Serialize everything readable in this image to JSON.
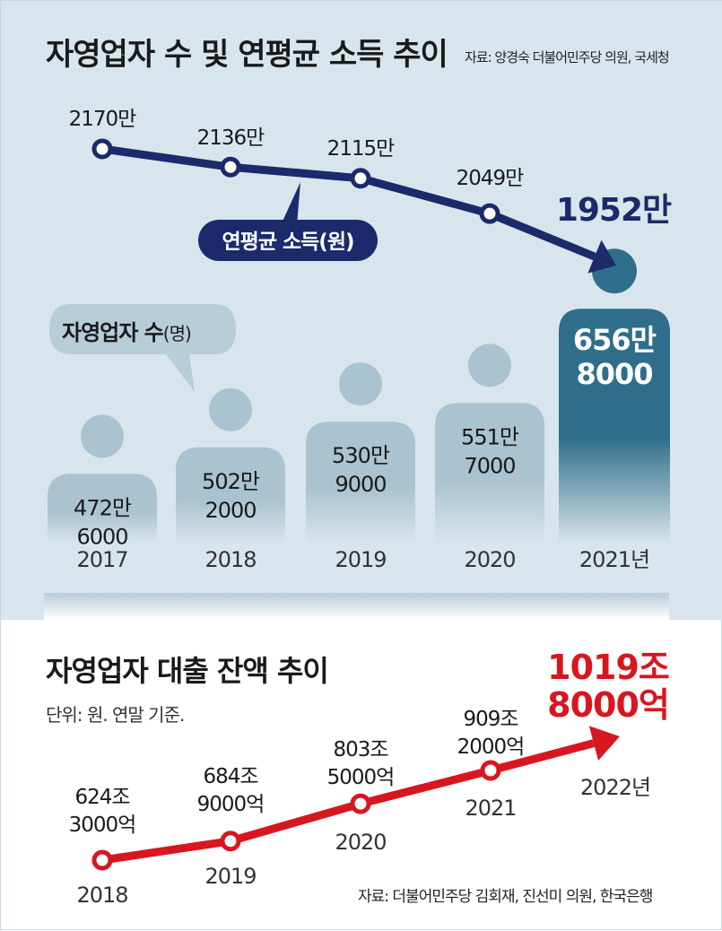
{
  "header": {
    "title": "자영업자 수 및 연평균 소득 추이",
    "source": "자료: 양경숙 더불어민주당 의원, 국세청"
  },
  "colors": {
    "panel_bg": "#d9e5ec",
    "income_line": "#1b2a6b",
    "person_light": "#a9c3d0",
    "person_dark": "#2f6e8a",
    "loan_line": "#d7171f"
  },
  "chart_data": [
    {
      "type": "line",
      "title": "연평균 소득(원)",
      "x": [
        "2017",
        "2018",
        "2019",
        "2020",
        "2021년"
      ],
      "values": [
        2170,
        2136,
        2115,
        2049,
        1952
      ],
      "value_labels": [
        "2170만",
        "2136만",
        "2115만",
        "2049만",
        "1952만"
      ],
      "unit": "만 원",
      "legend_label": "연평균 소득(원)"
    },
    {
      "type": "bar",
      "title": "자영업자 수(명)",
      "categories": [
        "2017",
        "2018",
        "2019",
        "2020",
        "2021년"
      ],
      "values": [
        4726000,
        5022000,
        5309000,
        5517000,
        6568000
      ],
      "value_labels": [
        [
          "472만",
          "6000"
        ],
        [
          "502만",
          "2000"
        ],
        [
          "530만",
          "9000"
        ],
        [
          "551만",
          "7000"
        ],
        [
          "656만",
          "8000"
        ]
      ],
      "legend_label_main": "자영업자 수",
      "legend_label_unit": "(명)"
    },
    {
      "type": "line",
      "title": "자영업자 대출 잔액 추이",
      "subtitle": "단위: 원. 연말 기준.",
      "x": [
        "2018",
        "2019",
        "2020",
        "2021",
        "2022년"
      ],
      "values": [
        624.3,
        684.9,
        803.5,
        909.2,
        1019.8
      ],
      "value_labels": [
        [
          "624조",
          "3000억"
        ],
        [
          "684조",
          "9000억"
        ],
        [
          "803조",
          "5000억"
        ],
        [
          "909조",
          "2000억"
        ],
        [
          "1019조",
          "8000억"
        ]
      ],
      "unit": "조 원",
      "source": "자료: 더불어민주당 김회재, 진선미 의원, 한국은행"
    }
  ]
}
